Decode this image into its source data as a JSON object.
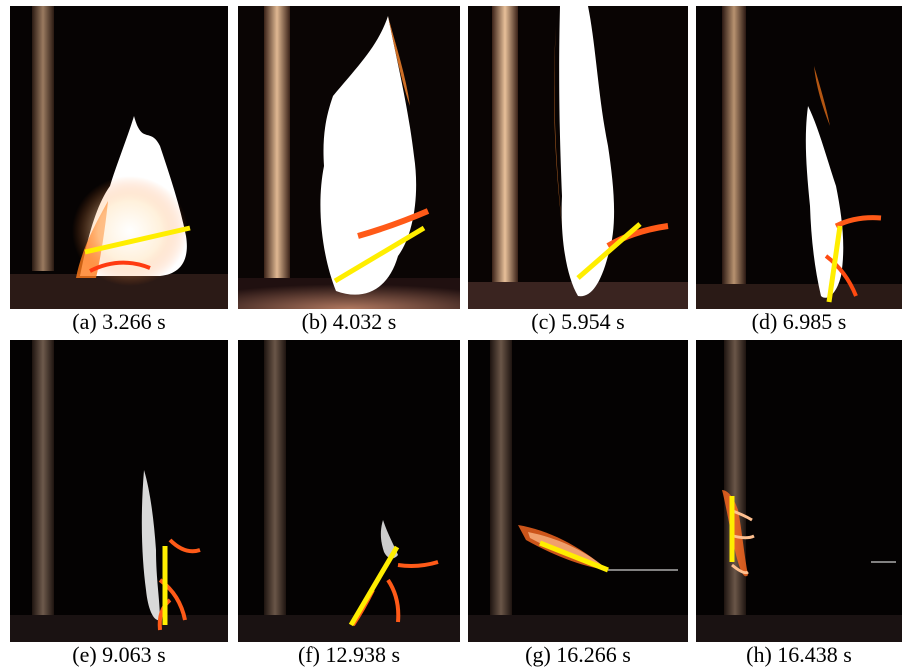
{
  "figure": {
    "panels": [
      {
        "caption": "(a) 3.266 s"
      },
      {
        "caption": "(b) 4.032 s"
      },
      {
        "caption": "(c) 5.954 s"
      },
      {
        "caption": "(d) 6.985 s"
      },
      {
        "caption": "(e) 9.063 s"
      },
      {
        "caption": "(f) 12.938 s"
      },
      {
        "caption": "(g) 16.266 s"
      },
      {
        "caption": "(h) 16.438 s"
      }
    ],
    "colors": {
      "marker_line": "#ffee00",
      "background": "#050303",
      "flame_core": "#ffffff",
      "flame_edge": "#ff7a1a",
      "wall_panel": "#8a6a52"
    }
  }
}
